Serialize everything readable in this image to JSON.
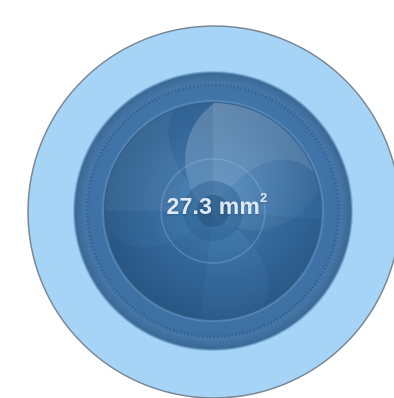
{
  "readout": {
    "value": "27.3",
    "unit": "mm",
    "unit_superscript": "2"
  },
  "icon": "camera-lens-icon",
  "colors": {
    "outer_disc": "#a6d4f7",
    "outer_border": "#7a8790",
    "lens_rim": "#4a7fb1",
    "lens_core": "#2a5f8f",
    "readout_text": "#ddeaf6"
  }
}
